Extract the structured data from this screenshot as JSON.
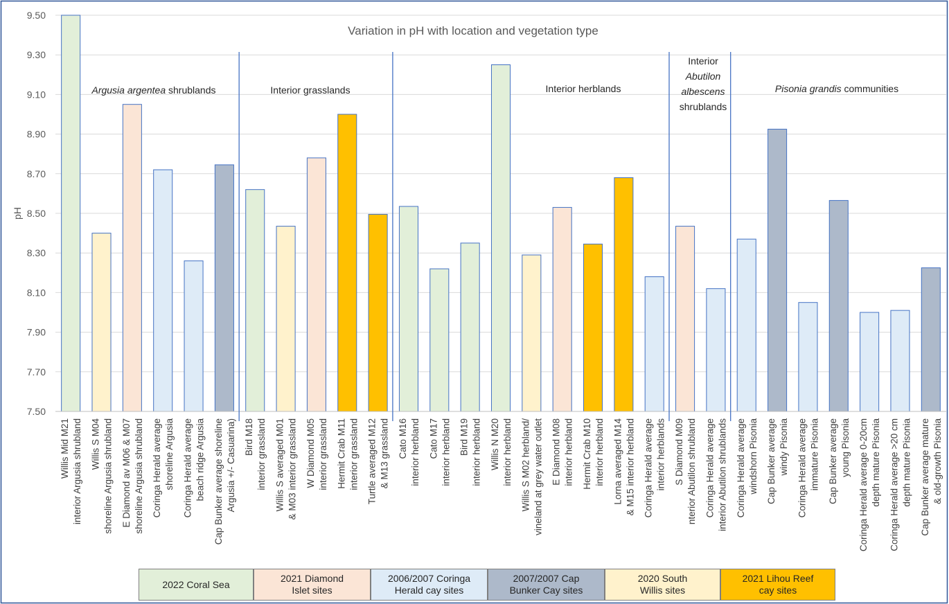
{
  "chart_data": {
    "type": "bar",
    "title": "Variation in pH with location and vegetation type",
    "ylabel": "pH",
    "xlabel": "",
    "ylim": [
      7.5,
      9.5
    ],
    "yticks": [
      "7.50",
      "7.70",
      "7.90",
      "8.10",
      "8.30",
      "8.50",
      "8.70",
      "8.90",
      "9.10",
      "9.30",
      "9.50"
    ],
    "grid": true,
    "legend_position": "bottom",
    "categories": [
      [
        "Willis Mid M21",
        "interior Argusia shrubland"
      ],
      [
        "Willis S M04",
        "shoreline Argusia shrubland"
      ],
      [
        "E Diamond av M06 & M07",
        "shoreline Argusia shrubland"
      ],
      [
        "Coringa Herald average",
        "shoreline Argusia"
      ],
      [
        "Coringa Herald average",
        "beach ridge Argusia"
      ],
      [
        "Cap Bunker average shoreline",
        "Argusia +/- Casuarina)"
      ],
      [
        "Bird M18",
        "interior grassland"
      ],
      [
        "Willis S averaged M01",
        "& M03 interior grassland"
      ],
      [
        "W Diamond M05",
        "interior grassland"
      ],
      [
        "Hermit Crab M11",
        "interior grassland"
      ],
      [
        "Turtle averaged M12",
        "& M13 grassland"
      ],
      [
        "Cato M16",
        "interior herbland"
      ],
      [
        "Cato M17",
        "interior herbland"
      ],
      [
        "Bird M19",
        "interior herbland"
      ],
      [
        "Willis N M20",
        "interior herbland"
      ],
      [
        "Willis S M02 herbland/",
        "vineland at grey water outlet"
      ],
      [
        "E Diamond M08",
        "interior herbland"
      ],
      [
        "Hermit Crab M10",
        "interior herbland"
      ],
      [
        "Lorna averaged M14",
        "& M15 interior herbland"
      ],
      [
        "Coringa Herald average",
        "interior herblands"
      ],
      [
        "S Diamond M09",
        "nterior Abutilon shrubland"
      ],
      [
        "Coringa Herald average",
        "interior Abutilon shrublands"
      ],
      [
        "Coringa Herald average",
        "windshorn Pisonia"
      ],
      [
        "Cap Bunker average",
        "windy Pisonia"
      ],
      [
        "Coringa Herald average",
        "immature Pisonia"
      ],
      [
        "Cap Bunker average",
        "young Pisonia"
      ],
      [
        "Coringa Herald average 0-20cm",
        "depth mature Pisonia"
      ],
      [
        "Coringa Herald average >20 cm",
        "depth mature Pisonia"
      ],
      [
        "Cap Bunker average mature",
        "& old-growth Pisonia"
      ]
    ],
    "values": [
      9.5,
      8.4,
      9.05,
      8.72,
      8.26,
      8.745,
      8.62,
      8.435,
      8.78,
      9.0,
      8.495,
      8.535,
      8.22,
      8.35,
      9.25,
      8.29,
      8.53,
      8.345,
      8.68,
      8.18,
      8.435,
      8.12,
      8.37,
      8.925,
      8.05,
      8.565,
      8.0,
      8.01,
      8.225
    ],
    "series_group": [
      "coral",
      "willis",
      "diamond",
      "coringa",
      "coringa",
      "capbunker",
      "coral",
      "willis",
      "diamond",
      "lihou",
      "lihou",
      "coral",
      "coral",
      "coral",
      "coral",
      "willis",
      "diamond",
      "lihou",
      "lihou",
      "coringa",
      "diamond",
      "coringa",
      "coringa",
      "capbunker",
      "coringa",
      "capbunker",
      "coringa",
      "coringa",
      "capbunker"
    ],
    "groups": [
      {
        "key": "coral",
        "label": "2022 Coral Sea",
        "color": "#e2efd9",
        "stroke": "#4472c4"
      },
      {
        "key": "diamond",
        "label": "2021 Diamond Islet sites",
        "color": "#fbe5d6",
        "stroke": "#4472c4"
      },
      {
        "key": "coringa",
        "label": "2006/2007 Coringa Herald cay sites",
        "color": "#deebf7",
        "stroke": "#4472c4"
      },
      {
        "key": "capbunker",
        "label": "2007/2007 Cap Bunker Cay sites",
        "color": "#adb9ca",
        "stroke": "#4472c4"
      },
      {
        "key": "willis",
        "label": "2020 South Willis sites",
        "color": "#fff2cc",
        "stroke": "#4472c4"
      },
      {
        "key": "lihou",
        "label": "2021 Lihou Reef cay sites",
        "color": "#ffc000",
        "stroke": "#4472c4"
      }
    ],
    "vegetation_labels": [
      {
        "lines": [
          [
            "Argusia argentea",
            true
          ],
          [
            " shrublands",
            false
          ]
        ]
      },
      {
        "lines": [
          [
            "Interior grasslands",
            false
          ]
        ]
      },
      {
        "lines": [
          [
            "Interior herblands",
            false
          ]
        ]
      },
      {
        "lines": [
          [
            "Interior",
            false
          ]
        ],
        "extra": [
          [
            "Abutilon",
            true
          ],
          [
            "albescens",
            true
          ],
          [
            "shrublands",
            false
          ]
        ]
      },
      {
        "lines": [
          [
            "Pisonia grandis",
            true
          ],
          [
            " communities",
            false
          ]
        ]
      }
    ]
  },
  "legend": [
    {
      "line1": "2022 Coral Sea",
      "line2": "",
      "color": "#e2efd9"
    },
    {
      "line1": "2021 Diamond",
      "line2": "Islet sites",
      "color": "#fbe5d6"
    },
    {
      "line1": "2006/2007 Coringa",
      "line2": "Herald cay sites",
      "color": "#deebf7"
    },
    {
      "line1": "2007/2007 Cap",
      "line2": "Bunker Cay sites",
      "color": "#adb9ca"
    },
    {
      "line1": "2020 South",
      "line2": "Willis sites",
      "color": "#fff2cc"
    },
    {
      "line1": "2021 Lihou Reef",
      "line2": "cay sites",
      "color": "#ffc000"
    }
  ]
}
